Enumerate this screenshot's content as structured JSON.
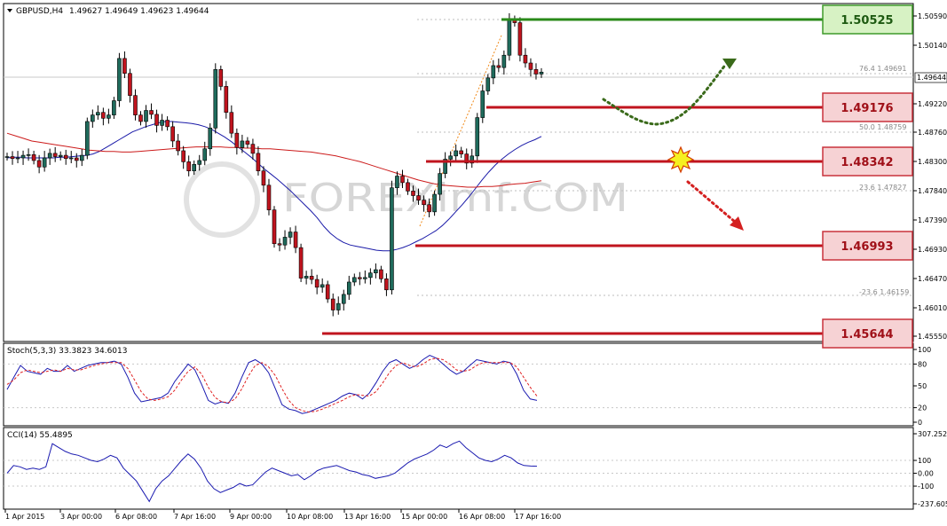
{
  "header": {
    "symbol": "GBPUSD,H4",
    "values": "1.49627 1.49649 1.49623 1.49644"
  },
  "stoch": {
    "label": "Stoch(5,3,3) 33.3823 34.6013",
    "ticks": [
      "100",
      "80",
      "50",
      "20",
      "0"
    ]
  },
  "cci": {
    "label": "CCI(14) 55.4895",
    "ticks": [
      "307.2528",
      "100",
      "0.00",
      "-100",
      "-237.6059"
    ]
  },
  "watermark": "FOREXimf.COM",
  "colors": {
    "bull": "#1f6b5c",
    "bear": "#c0141e",
    "ma_fast": "#1a1aa8",
    "ma_slow": "#cc1b1b",
    "resistance": "#2a8a1a",
    "support": "#c0141e",
    "stoch_main": "#1a1ab0",
    "stoch_signal": "#e02020"
  },
  "levels": [
    {
      "label": "1.50525",
      "kind": "resistance"
    },
    {
      "label": "1.49176",
      "kind": "support"
    },
    {
      "label": "1.48342",
      "kind": "support"
    },
    {
      "label": "1.46993",
      "kind": "support"
    },
    {
      "label": "1.45644",
      "kind": "support"
    }
  ],
  "current_price": "1.49644",
  "fib_labels": [
    "76.4  1.49691",
    "50.0  1.48759",
    "23.6  1.47827",
    "-23.6  1.46159"
  ],
  "chart_data": {
    "type": "candlestick",
    "symbol": "GBPUSD",
    "timeframe": "H4",
    "y_ticks": [
      "1.50590",
      "1.50140",
      "1.49220",
      "1.48760",
      "1.48300",
      "1.47840",
      "1.47390",
      "1.46930",
      "1.46470",
      "1.46010",
      "1.45550"
    ],
    "x_ticks": [
      "1 Apr 2015",
      "3 Apr 00:00",
      "6 Apr 08:00",
      "7 Apr 16:00",
      "9 Apr 00:00",
      "10 Apr 08:00",
      "13 Apr 16:00",
      "15 Apr 00:00",
      "16 Apr 08:00",
      "17 Apr 16:00"
    ],
    "ylim": [
      1.4555,
      1.5064
    ],
    "close": [
      1.4834,
      1.4831,
      1.4832,
      1.4836,
      1.4837,
      1.4828,
      1.4818,
      1.4832,
      1.4839,
      1.4834,
      1.4836,
      1.4831,
      1.4832,
      1.4828,
      1.4836,
      1.4888,
      1.4898,
      1.4902,
      1.4893,
      1.4898,
      1.492,
      1.4985,
      1.4962,
      1.4928,
      1.4898,
      1.4888,
      1.4905,
      1.4899,
      1.4882,
      1.489,
      1.488,
      1.4858,
      1.4843,
      1.4826,
      1.4812,
      1.4822,
      1.4828,
      1.4846,
      1.4878,
      1.4968,
      1.4942,
      1.4902,
      1.487,
      1.4848,
      1.4858,
      1.4853,
      1.4839,
      1.4812,
      1.479,
      1.4752,
      1.47,
      1.4698,
      1.471,
      1.4718,
      1.4694,
      1.4647,
      1.465,
      1.4645,
      1.4633,
      1.4637,
      1.4615,
      1.4598,
      1.4608,
      1.4622,
      1.4641,
      1.4648,
      1.4646,
      1.4648,
      1.4655,
      1.466,
      1.4646,
      1.4629,
      1.4786,
      1.4804,
      1.4794,
      1.4781,
      1.4774,
      1.4767,
      1.476,
      1.4749,
      1.4776,
      1.4808,
      1.483,
      1.4835,
      1.4843,
      1.4838,
      1.4824,
      1.4835,
      1.4894,
      1.4935,
      1.4955,
      1.4974,
      1.4971,
      1.499,
      1.5045,
      1.504,
      1.499,
      1.4978,
      1.4968,
      1.4961,
      1.4964
    ],
    "ma_fast": [
      1.4832,
      1.4833,
      1.4833,
      1.4832,
      1.4832,
      1.4832,
      1.4832,
      1.4832,
      1.4833,
      1.4833,
      1.4834,
      1.4835,
      1.4836,
      1.4838,
      1.4842,
      1.4848,
      1.4854,
      1.486,
      1.4866,
      1.4872,
      1.4876,
      1.488,
      1.4883,
      1.4886,
      1.4888,
      1.4888,
      1.4887,
      1.4886,
      1.4885,
      1.4883,
      1.488,
      1.4876,
      1.487,
      1.4864,
      1.4857,
      1.4849,
      1.4841,
      1.4833,
      1.4824,
      1.4815,
      1.4807,
      1.4799,
      1.479,
      1.4781,
      1.4771,
      1.4761,
      1.4751,
      1.474,
      1.4727,
      1.4716,
      1.4708,
      1.4702,
      1.4698,
      1.4696,
      1.4694,
      1.4692,
      1.469,
      1.4689,
      1.4689,
      1.4691,
      1.4694,
      1.4698,
      1.4703,
      1.4708,
      1.4714,
      1.472,
      1.4728,
      1.4738,
      1.4749,
      1.476,
      1.4772,
      1.4785,
      1.4798,
      1.481,
      1.4821,
      1.483,
      1.4838,
      1.4845,
      1.4851,
      1.4856,
      1.486,
      1.4865
    ],
    "ma_slow": [
      1.487,
      1.4866,
      1.4862,
      1.4858,
      1.4856,
      1.4854,
      1.4852,
      1.485,
      1.4848,
      1.4846,
      1.4844,
      1.4843,
      1.4842,
      1.4842,
      1.4841,
      1.4841,
      1.4842,
      1.4843,
      1.4844,
      1.4845,
      1.4846,
      1.4847,
      1.4848,
      1.4849,
      1.4849,
      1.4849,
      1.4849,
      1.4848,
      1.4848,
      1.4847,
      1.4847,
      1.4846,
      1.4846,
      1.4845,
      1.4844,
      1.4843,
      1.4842,
      1.4841,
      1.4839,
      1.4837,
      1.4835,
      1.4832,
      1.4829,
      1.4826,
      1.4822,
      1.4818,
      1.4814,
      1.481,
      1.4806,
      1.4802,
      1.4798,
      1.4795,
      1.4792,
      1.479,
      1.4789,
      1.4788,
      1.4787,
      1.4787,
      1.4788,
      1.4788,
      1.4789,
      1.4791,
      1.4792,
      1.4793,
      1.4795,
      1.4797
    ],
    "stoch_main": [
      45,
      62,
      78,
      70,
      68,
      66,
      74,
      70,
      70,
      78,
      70,
      74,
      78,
      80,
      82,
      82,
      84,
      80,
      62,
      40,
      28,
      30,
      32,
      34,
      40,
      56,
      68,
      80,
      72,
      52,
      30,
      25,
      28,
      26,
      40,
      62,
      82,
      86,
      80,
      68,
      46,
      24,
      18,
      16,
      12,
      14,
      18,
      22,
      26,
      30,
      36,
      40,
      38,
      32,
      40,
      54,
      70,
      82,
      86,
      80,
      74,
      78,
      86,
      92,
      88,
      80,
      72,
      66,
      70,
      78,
      86,
      84,
      82,
      80,
      84,
      82,
      66,
      44,
      32,
      30
    ],
    "stoch_signal": [
      52,
      58,
      68,
      72,
      70,
      68,
      70,
      72,
      70,
      74,
      72,
      72,
      75,
      78,
      80,
      82,
      82,
      82,
      74,
      58,
      42,
      32,
      30,
      32,
      35,
      44,
      58,
      70,
      76,
      66,
      48,
      34,
      28,
      27,
      32,
      46,
      64,
      78,
      82,
      76,
      64,
      46,
      30,
      20,
      16,
      14,
      15,
      18,
      22,
      26,
      30,
      35,
      38,
      37,
      36,
      42,
      54,
      68,
      78,
      82,
      78,
      76,
      80,
      86,
      88,
      86,
      80,
      72,
      70,
      72,
      78,
      82,
      82,
      82,
      82,
      82,
      76,
      62,
      48,
      36
    ],
    "cci": [
      0,
      60,
      50,
      30,
      40,
      30,
      50,
      230,
      200,
      170,
      150,
      140,
      120,
      100,
      90,
      110,
      140,
      120,
      40,
      -10,
      -60,
      -140,
      -220,
      -120,
      -60,
      -20,
      40,
      100,
      150,
      110,
      40,
      -60,
      -120,
      -150,
      -130,
      -110,
      -80,
      -100,
      -90,
      -40,
      10,
      40,
      20,
      0,
      -20,
      -10,
      -50,
      -20,
      20,
      40,
      50,
      60,
      40,
      20,
      10,
      -10,
      -20,
      -40,
      -30,
      -20,
      0,
      40,
      80,
      110,
      130,
      150,
      180,
      220,
      200,
      230,
      250,
      200,
      160,
      120,
      100,
      90,
      110,
      140,
      120,
      80,
      60,
      56,
      55
    ]
  }
}
